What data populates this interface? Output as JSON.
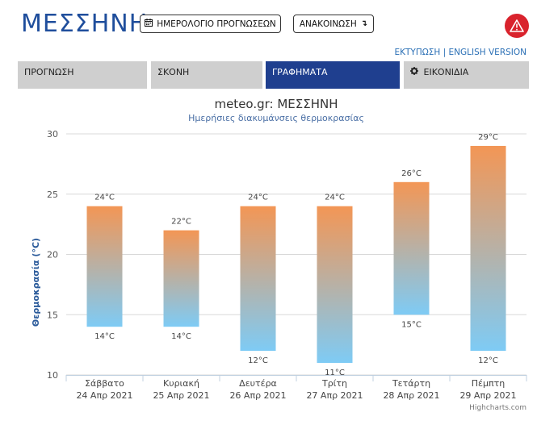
{
  "header": {
    "title": "ΜΕΣΣΗΝΗ",
    "calendar_button": "ΗΜΕΡΟΛΟΓΙΟ ΠΡΟΓΝΩΣΕΩΝ",
    "announce_button": "ΑΝΑΚΟΙΝΩΣΗ",
    "print_link": "ΕΚΤΥΠΩΣΗ",
    "separator": "|",
    "english_link": "ENGLISH VERSION"
  },
  "tabs": [
    {
      "label": "ΠΡΟΓΝΩΣΗ",
      "active": false
    },
    {
      "label": "ΣΚΟΝΗ",
      "active": false
    },
    {
      "label": "ΓΡΑΦΗΜΑΤΑ",
      "active": true
    },
    {
      "label": "ΕΙΚΟΝΙΔΙΑ",
      "active": false
    }
  ],
  "colors": {
    "brand": "#1f4e9c",
    "tab_active": "#1f3f8f",
    "bar_top": "#f39655",
    "bar_bottom": "#7ecbf5",
    "alert": "#d9232d"
  },
  "chart_data": {
    "type": "bar",
    "subtype": "columnrange",
    "title": "meteo.gr: ΜΕΣΣΗΝΗ",
    "subtitle": "Ημερήσιες διακυμάνσεις θερμοκρασίας",
    "ylabel": "Θερμοκρασία (°C)",
    "ylim": [
      10,
      30
    ],
    "yticks": [
      10,
      15,
      20,
      25,
      30
    ],
    "grid": true,
    "categories": [
      {
        "day": "Σάββατο",
        "date": "24 Απρ 2021"
      },
      {
        "day": "Κυριακή",
        "date": "25 Απρ 2021"
      },
      {
        "day": "Δευτέρα",
        "date": "26 Απρ 2021"
      },
      {
        "day": "Τρίτη",
        "date": "27 Απρ 2021"
      },
      {
        "day": "Τετάρτη",
        "date": "28 Απρ 2021"
      },
      {
        "day": "Πέμπτη",
        "date": "29 Απρ 2021"
      }
    ],
    "low": [
      14,
      14,
      12,
      11,
      15,
      12
    ],
    "high": [
      24,
      22,
      24,
      24,
      26,
      29
    ],
    "unit": "°C",
    "credits": "Highcharts.com"
  }
}
